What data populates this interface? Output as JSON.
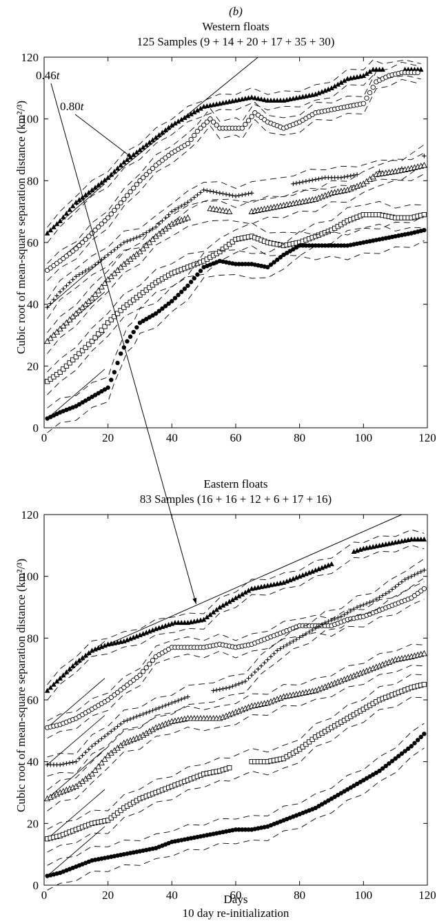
{
  "panel_label": "(b)",
  "xlabel_bottom": "Days",
  "footer": "10 day re-initialization",
  "chart_data": [
    {
      "type": "scatter",
      "title": "Western floats",
      "subtitle": "125 Samples (9 + 14 + 20 + 17 + 35 + 30)",
      "xlabel": "",
      "ylabel": "Cubic root of mean-square separation distance (km²/³)",
      "xlim": [
        0,
        120
      ],
      "ylim": [
        0,
        120
      ],
      "xticks": [
        0,
        20,
        40,
        60,
        80,
        100,
        120
      ],
      "yticks": [
        0,
        20,
        40,
        60,
        80,
        100,
        120
      ],
      "reference_line": {
        "label": "0.80t",
        "slope": 0.8,
        "x": [
          10,
          67
        ],
        "y": [
          72,
          120
        ]
      },
      "series": [
        {
          "marker": "triangle-filled",
          "x": [
            1,
            5,
            10,
            15,
            20,
            25,
            30,
            35,
            40,
            45,
            50,
            55,
            60,
            65,
            70,
            75,
            80,
            85,
            90,
            95,
            100,
            103,
            106,
            113,
            118
          ],
          "y": [
            63,
            67,
            73,
            77,
            81,
            86,
            90,
            94,
            98,
            101,
            104,
            105,
            106,
            107,
            106,
            106,
            107,
            108,
            110,
            113,
            114,
            116,
            116,
            116,
            116
          ]
        },
        {
          "marker": "circle-open",
          "x": [
            1,
            5,
            10,
            15,
            20,
            25,
            30,
            35,
            40,
            45,
            48,
            52,
            55,
            60,
            62,
            66,
            70,
            75,
            80,
            85,
            90,
            95,
            100,
            104,
            108,
            112,
            117
          ],
          "y": [
            51,
            54,
            58,
            63,
            68,
            74,
            80,
            85,
            89,
            92,
            96,
            100,
            97,
            97,
            97,
            102,
            99,
            97,
            99,
            102,
            103,
            104,
            105,
            112,
            114,
            115,
            115
          ]
        },
        {
          "marker": "plus",
          "x": [
            1,
            5,
            10,
            15,
            20,
            25,
            30,
            35,
            40,
            45,
            50,
            55,
            60,
            65,
            78,
            83,
            88,
            93,
            98,
            105,
            112,
            119
          ],
          "y": [
            39,
            44,
            49,
            52,
            56,
            60,
            62,
            65,
            70,
            73,
            77,
            76,
            75,
            76,
            79,
            80,
            81,
            81,
            82,
            83,
            84,
            88
          ]
        },
        {
          "marker": "triangle-open",
          "x": [
            1,
            5,
            10,
            15,
            20,
            25,
            30,
            35,
            40,
            45,
            52,
            58,
            65,
            70,
            75,
            80,
            85,
            90,
            95,
            100,
            104,
            110,
            115,
            119
          ],
          "y": [
            28,
            32,
            37,
            42,
            48,
            53,
            57,
            62,
            66,
            68,
            71,
            70,
            70,
            71,
            72,
            73,
            74,
            76,
            77,
            79,
            82,
            83,
            84,
            85
          ]
        },
        {
          "marker": "square-open",
          "x": [
            1,
            5,
            10,
            15,
            20,
            25,
            30,
            35,
            40,
            45,
            50,
            55,
            60,
            65,
            70,
            75,
            80,
            85,
            90,
            95,
            100,
            105,
            110,
            115,
            119
          ],
          "y": [
            15,
            18,
            23,
            28,
            34,
            39,
            43,
            47,
            50,
            52,
            54,
            57,
            61,
            62,
            60,
            59,
            60,
            62,
            64,
            67,
            69,
            69,
            68,
            68,
            69
          ]
        },
        {
          "marker": "circle-filled",
          "x": [
            1,
            5,
            10,
            15,
            20,
            22,
            24,
            26,
            28,
            30,
            35,
            40,
            45,
            50,
            55,
            60,
            65,
            70,
            75,
            80,
            85,
            90,
            95,
            100,
            105,
            110,
            115,
            119
          ],
          "y": [
            3,
            5,
            7,
            10,
            13,
            18,
            24,
            28,
            31,
            34,
            37,
            41,
            46,
            52,
            54,
            53,
            53,
            52,
            56,
            59,
            59,
            59,
            59,
            60,
            61,
            62,
            63,
            64
          ]
        }
      ]
    },
    {
      "type": "scatter",
      "title": "Eastern floats",
      "subtitle": "83 Samples (16 + 16 + 12 + 6 + 17 + 16)",
      "xlabel": "Days",
      "ylabel": "Cubic root of mean-square separation distance (km²/³)",
      "xlim": [
        0,
        120
      ],
      "ylim": [
        0,
        120
      ],
      "xticks": [
        0,
        20,
        40,
        60,
        80,
        100,
        120
      ],
      "yticks": [
        0,
        20,
        40,
        60,
        80,
        100,
        120
      ],
      "reference_line": {
        "label": "0.46t",
        "slope": 0.46,
        "x": [
          20,
          112
        ],
        "y": [
          78,
          120
        ]
      },
      "series": [
        {
          "marker": "triangle-filled",
          "x": [
            1,
            5,
            10,
            15,
            20,
            25,
            30,
            35,
            41,
            45,
            50,
            55,
            60,
            65,
            70,
            75,
            80,
            85,
            90,
            97,
            100,
            105,
            110,
            115,
            119
          ],
          "y": [
            63,
            67,
            72,
            76,
            78,
            79,
            81,
            83,
            85,
            85,
            86,
            90,
            93,
            96,
            97,
            98,
            100,
            102,
            104,
            108,
            109,
            110,
            111,
            112,
            112
          ]
        },
        {
          "marker": "circle-open",
          "x": [
            1,
            5,
            10,
            15,
            20,
            25,
            30,
            35,
            40,
            45,
            50,
            55,
            60,
            65,
            70,
            75,
            80,
            85,
            90,
            95,
            100,
            105,
            110,
            115,
            119
          ],
          "y": [
            51,
            52,
            54,
            57,
            60,
            64,
            68,
            74,
            77,
            77,
            77,
            78,
            77,
            78,
            80,
            82,
            84,
            84,
            84,
            86,
            87,
            89,
            91,
            93,
            96
          ]
        },
        {
          "marker": "plus",
          "x": [
            1,
            5,
            10,
            15,
            20,
            25,
            30,
            35,
            40,
            45,
            53,
            58,
            63,
            68,
            73,
            78,
            83,
            88,
            93,
            98,
            103,
            108,
            113,
            119
          ],
          "y": [
            39,
            39,
            40,
            45,
            49,
            53,
            55,
            57,
            59,
            61,
            63,
            64,
            66,
            71,
            76,
            79,
            82,
            85,
            87,
            90,
            92,
            95,
            99,
            102
          ]
        },
        {
          "marker": "triangle-open",
          "x": [
            1,
            5,
            10,
            15,
            20,
            25,
            30,
            35,
            40,
            45,
            50,
            55,
            60,
            65,
            70,
            75,
            80,
            85,
            90,
            95,
            100,
            105,
            110,
            115,
            119
          ],
          "y": [
            28,
            30,
            32,
            36,
            42,
            46,
            48,
            51,
            53,
            54,
            54,
            54,
            56,
            58,
            59,
            61,
            62,
            63,
            65,
            67,
            69,
            71,
            73,
            74,
            75
          ]
        },
        {
          "marker": "square-open",
          "x": [
            1,
            5,
            10,
            15,
            20,
            25,
            30,
            35,
            40,
            45,
            50,
            55,
            58,
            65,
            70,
            75,
            80,
            85,
            90,
            95,
            100,
            105,
            110,
            115,
            119
          ],
          "y": [
            15,
            16,
            18,
            20,
            21,
            25,
            28,
            30,
            32,
            34,
            36,
            37,
            38,
            40,
            40,
            41,
            44,
            48,
            51,
            54,
            57,
            60,
            62,
            64,
            65
          ]
        },
        {
          "marker": "circle-filled",
          "x": [
            1,
            5,
            10,
            15,
            20,
            25,
            30,
            35,
            40,
            45,
            50,
            55,
            60,
            65,
            70,
            75,
            80,
            85,
            90,
            95,
            100,
            105,
            110,
            115,
            119
          ],
          "y": [
            3,
            4,
            6,
            8,
            9,
            10,
            11,
            12,
            14,
            15,
            16,
            17,
            18,
            18,
            19,
            21,
            23,
            25,
            28,
            31,
            34,
            37,
            41,
            45,
            49
          ]
        }
      ]
    }
  ]
}
